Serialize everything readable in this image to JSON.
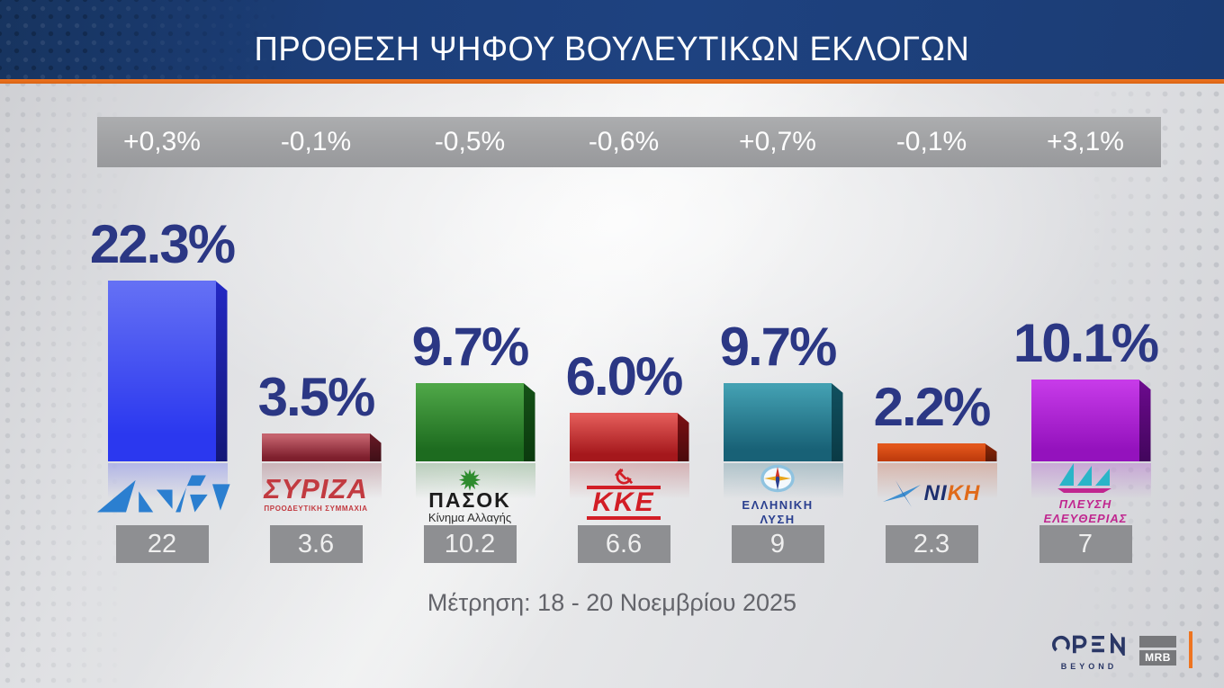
{
  "header": {
    "title": "ΠΡΟΘΕΣΗ ΨΗΦΟΥ ΒΟΥΛΕΥΤΙΚΩΝ ΕΚΛΟΓΩΝ"
  },
  "footer": {
    "survey_period": "Μέτρηση: 18 - 20 Νοεμβρίου 2025",
    "open_label": "OPEN",
    "open_sublabel": "BEYOND",
    "mrb_label": "MRB"
  },
  "colors": {
    "accent_orange": "#ee7420",
    "header_bg": "#1c3e79",
    "label_navy": "#2b3784",
    "change_strip_bg": "#a2a3a5",
    "value_box_bg": "#8e8f92",
    "date_text": "#64656b",
    "background_gray": "#e4e5e7",
    "open_navy": "#2a3766",
    "mrb_gray": "#77787b"
  },
  "chart_data": {
    "type": "bar",
    "title": "ΠΡΟΘΕΣΗ ΨΗΦΟΥ ΒΟΥΛΕΥΤΙΚΩΝ ΕΚΛΟΓΩΝ",
    "xlabel": "",
    "ylabel": "%",
    "ylim": [
      0,
      25
    ],
    "grid": false,
    "legend": "none",
    "categories": [
      "ΝΔ",
      "ΣΥΡΙΖΑ ΠΡΟΟΔΕΥΤΙΚΗ ΣΥΜΜΑΧΙΑ",
      "ΠΑΣΟΚ Κίνημα Αλλαγής",
      "ΚΚΕ",
      "ΕΛΛΗΝΙΚΗ ΛΥΣΗ",
      "ΝΙΚΗ",
      "ΠΛΕΥΣΗ ΕΛΕΥΘΕΡΙΑΣ"
    ],
    "values": [
      22.3,
      3.5,
      9.7,
      6.0,
      9.7,
      2.2,
      10.1
    ],
    "changes": [
      "+0,3%",
      "-0,1%",
      "-0,5%",
      "-0,6%",
      "+0,7%",
      "-0,1%",
      "+3,1%"
    ],
    "previous": [
      "22",
      "3.6",
      "10.2",
      "6.6",
      "9",
      "2.3",
      "7"
    ],
    "parties": [
      {
        "id": "nd",
        "name": "ΝΔ",
        "logo_icon": "nd-logo",
        "value": 22.3,
        "value_label": "22.3%",
        "change_label": "+0,3%",
        "previous_label": "22",
        "logo_text": "",
        "logo_subtext": "",
        "bar_top": "#6470f4",
        "bar_bottom": "#2b38ef",
        "side_top": "#2328c4",
        "side_bottom": "#131777",
        "logo_color": "#2b7fd0"
      },
      {
        "id": "syriza",
        "name": "ΣΥΡΙΖΑ ΠΡΟΟΔΕΥΤΙΚΗ ΣΥΜΜΑΧΙΑ",
        "logo_icon": "syriza-logo",
        "value": 3.5,
        "value_label": "3.5%",
        "change_label": "-0,1%",
        "previous_label": "3.6",
        "logo_text": "ΣΥΡΙΖΑ",
        "logo_subtext": "ΠΡΟΟΔΕΥΤΙΚΗ ΣΥΜΜΑΧΙΑ",
        "bar_top": "#c4626d",
        "bar_bottom": "#7e1f2d",
        "side_top": "#691a26",
        "side_bottom": "#3f0f17",
        "logo_color": "#c23a40"
      },
      {
        "id": "pasok",
        "name": "ΠΑΣΟΚ Κίνημα Αλλαγής",
        "logo_icon": "pasok-logo",
        "value": 9.7,
        "value_label": "9.7%",
        "change_label": "-0,5%",
        "previous_label": "10.2",
        "logo_text": "ΠΑΣΟΚ",
        "logo_subtext": "Κίνημα Αλλαγής",
        "bar_top": "#4ea647",
        "bar_bottom": "#1d6b1f",
        "side_top": "#155117",
        "side_bottom": "#0b3a0e",
        "logo_color": "#2e8b2e"
      },
      {
        "id": "kke",
        "name": "ΚΚΕ",
        "logo_icon": "kke-logo",
        "value": 6.0,
        "value_label": "6.0%",
        "change_label": "-0,6%",
        "previous_label": "6.6",
        "logo_text": "ΚΚΕ",
        "logo_subtext": "",
        "bar_top": "#e25b58",
        "bar_bottom": "#a5181c",
        "side_top": "#7c1013",
        "side_bottom": "#4a0a0c",
        "logo_color": "#d21e26"
      },
      {
        "id": "elliniki-lysi",
        "name": "ΕΛΛΗΝΙΚΗ ΛΥΣΗ",
        "logo_icon": "elliniki-lysi-logo",
        "value": 9.7,
        "value_label": "9.7%",
        "change_label": "+0,7%",
        "previous_label": "9",
        "logo_text": "ΕΛΛΗΝΙΚΗ",
        "logo_subtext": "ΛΥΣΗ",
        "bar_top": "#43a0b2",
        "bar_bottom": "#186176",
        "side_top": "#11505f",
        "side_bottom": "#0a3a45",
        "logo_color": "#2a3f8f"
      },
      {
        "id": "niki",
        "name": "ΝΙΚΗ",
        "logo_icon": "niki-logo",
        "value": 2.2,
        "value_label": "2.2%",
        "change_label": "-0,1%",
        "previous_label": "2.3",
        "logo_text": "ΝΙ",
        "logo_subtext": "ΚΗ",
        "bar_top": "#e2561b",
        "bar_bottom": "#c13d0e",
        "side_top": "#8f2707",
        "side_bottom": "#5f1a05",
        "logo_color": "#1d2f6e"
      },
      {
        "id": "plefsi-eleftherias",
        "name": "ΠΛΕΥΣΗ ΕΛΕΥΘΕΡΙΑΣ",
        "logo_icon": "plefsi-eleftherias-logo",
        "value": 10.1,
        "value_label": "10.1%",
        "change_label": "+3,1%",
        "previous_label": "7",
        "logo_text": "ΠΛΕΥΣΗ",
        "logo_subtext": "ΕΛΕΥΘΕΡΙΑΣ",
        "bar_top": "#c63ae8",
        "bar_bottom": "#9412bd",
        "side_top": "#6d0a8f",
        "side_bottom": "#42065c",
        "logo_color": "#c0268f"
      }
    ]
  }
}
